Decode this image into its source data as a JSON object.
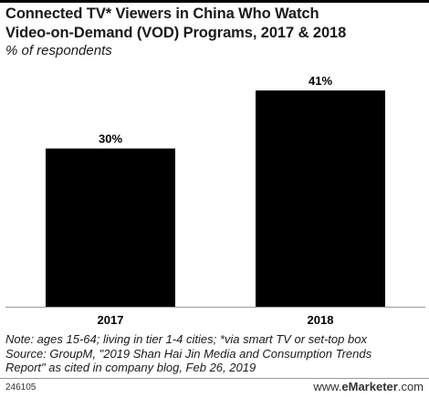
{
  "header": {
    "title_line1": "Connected TV* Viewers in China Who Watch",
    "title_line2": "Video-on-Demand (VOD) Programs, 2017 & 2018",
    "subtitle": "% of respondents"
  },
  "chart_data": {
    "type": "bar",
    "title": "Connected TV* Viewers in China Who Watch Video-on-Demand (VOD) Programs, 2017 & 2018",
    "subtitle": "% of respondents",
    "categories": [
      "2017",
      "2018"
    ],
    "values": [
      30,
      41
    ],
    "value_labels": [
      "30%",
      "41%"
    ],
    "ylim": [
      0,
      45
    ],
    "grid": false,
    "bar_color": "#000000"
  },
  "footer": {
    "note_line1": "Note: ages 15-64; living in tier 1-4 cities; *via smart TV or set-top box",
    "note_line2": "Source: GroupM, \"2019 Shan Hai Jin Media and Consumption Trends",
    "note_line3": "Report\" as cited in company blog, Feb 26, 2019",
    "chart_id": "246105",
    "brand_prefix": "www.",
    "brand_name": "eMarketer",
    "brand_suffix": ".com"
  }
}
